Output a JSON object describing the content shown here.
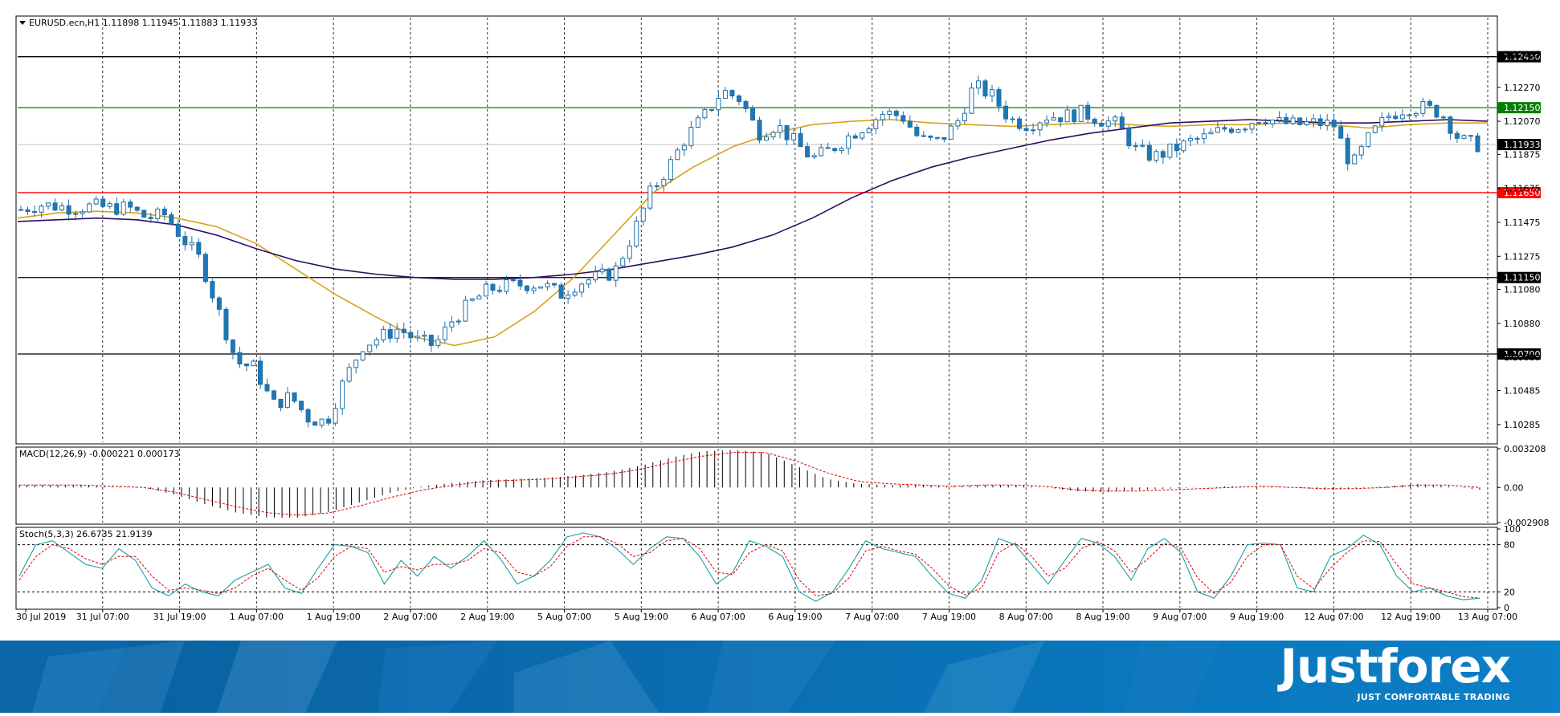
{
  "chart_data": [
    {
      "type": "candlestick",
      "header": {
        "symbol": "EURUSD.ecn,H1",
        "open": "1.11898",
        "high": "1.11945",
        "low": "1.11883",
        "close": "1.11933"
      },
      "ylim": [
        1.1018,
        1.1268
      ],
      "price_ticks": [
        "1.12465",
        "1.12270",
        "1.12070",
        "1.11875",
        "1.11675",
        "1.11475",
        "1.11275",
        "1.11080",
        "1.10880",
        "1.10680",
        "1.10485",
        "1.10285"
      ],
      "horizontal_levels": [
        {
          "value": 1.1245,
          "label": "1.12450",
          "color": "#000000"
        },
        {
          "value": 1.1215,
          "label": "1.12150",
          "color": "#008000"
        },
        {
          "value": 1.1165,
          "label": "1.11650",
          "color": "#ff0000"
        },
        {
          "value": 1.1115,
          "label": "1.11150",
          "color": "#000000"
        },
        {
          "value": 1.107,
          "label": "1.10700",
          "color": "#000000"
        }
      ],
      "current_price": {
        "value": 1.11933,
        "label": "1.11933"
      },
      "x_ticks": [
        "30 Jul 2019",
        "31 Jul 07:00",
        "31 Jul 19:00",
        "1 Aug 07:00",
        "1 Aug 19:00",
        "2 Aug 07:00",
        "2 Aug 19:00",
        "5 Aug 07:00",
        "5 Aug 19:00",
        "6 Aug 07:00",
        "6 Aug 19:00",
        "7 Aug 07:00",
        "7 Aug 19:00",
        "8 Aug 07:00",
        "8 Aug 19:00",
        "9 Aug 07:00",
        "9 Aug 19:00",
        "12 Aug 07:00",
        "12 Aug 19:00",
        "13 Aug 07:00"
      ],
      "close_path": [
        1.1155,
        1.1158,
        1.1157,
        1.1156,
        1.1157,
        1.1156,
        1.1156,
        1.115,
        1.1152,
        1.1138,
        1.1125,
        1.1095,
        1.1065,
        1.1062,
        1.104,
        1.1045,
        1.1032,
        1.103,
        1.1055,
        1.1075,
        1.108,
        1.1085,
        1.1078,
        1.1075,
        1.109,
        1.11,
        1.1108,
        1.111,
        1.1111,
        1.1111,
        1.1105,
        1.1112,
        1.1115,
        1.1118,
        1.114,
        1.1165,
        1.118,
        1.1198,
        1.121,
        1.1225,
        1.122,
        1.12,
        1.1205,
        1.1195,
        1.1185,
        1.119,
        1.1198,
        1.1205,
        1.1212,
        1.121,
        1.1196,
        1.1195,
        1.1205,
        1.1228,
        1.1222,
        1.1208,
        1.1205,
        1.121,
        1.121,
        1.1212,
        1.1208,
        1.1205,
        1.119,
        1.1186,
        1.119,
        1.1195,
        1.1198,
        1.1203,
        1.1205,
        1.121,
        1.1206,
        1.1205,
        1.1206,
        1.1205,
        1.118,
        1.1198,
        1.121,
        1.1215,
        1.1215,
        1.1212,
        1.1196,
        1.1193
      ],
      "series": [
        {
          "name": "",
          "color": "#d9a21b",
          "values": [
            1.115,
            1.1153,
            1.1154,
            1.1153,
            1.115,
            1.1145,
            1.1135,
            1.112,
            1.1105,
            1.1092,
            1.108,
            1.1075,
            1.108,
            1.1095,
            1.1115,
            1.114,
            1.1165,
            1.118,
            1.1192,
            1.12,
            1.1205,
            1.1207,
            1.1208,
            1.1206,
            1.1205,
            1.1204,
            1.1205,
            1.1206,
            1.1205,
            1.1204,
            1.1205,
            1.1205,
            1.1206,
            1.1205,
            1.1203,
            1.1205,
            1.1206,
            1.1206
          ]
        },
        {
          "name": "",
          "color": "#2b0f5e",
          "values": [
            1.1148,
            1.1149,
            1.115,
            1.1149,
            1.1146,
            1.114,
            1.1132,
            1.1125,
            1.112,
            1.1117,
            1.1115,
            1.1114,
            1.1114,
            1.1115,
            1.1117,
            1.112,
            1.1124,
            1.1128,
            1.1133,
            1.114,
            1.115,
            1.1162,
            1.1172,
            1.118,
            1.1186,
            1.1191,
            1.1196,
            1.12,
            1.1203,
            1.1206,
            1.1207,
            1.1208,
            1.1207,
            1.1206,
            1.1206,
            1.1207,
            1.1208,
            1.1207
          ]
        }
      ]
    },
    {
      "type": "bar",
      "title": "MACD(12,26,9) -0.000221 0.000173",
      "ylim": [
        -0.002908,
        0.003208
      ],
      "y_ticks": [
        "0.003208",
        "0.00",
        "-0.002908"
      ],
      "histogram_path": [
        0.0002,
        0.0002,
        0.0002,
        0.0001,
        0.0,
        -0.0006,
        -0.0014,
        -0.0021,
        -0.0025,
        -0.0025,
        -0.002,
        -0.0012,
        -0.0004,
        0.0001,
        0.0004,
        0.0006,
        0.0007,
        0.0008,
        0.001,
        0.0013,
        0.0018,
        0.0025,
        0.003,
        0.0031,
        0.0029,
        0.0018,
        0.0007,
        0.0003,
        0.0002,
        0.0002,
        0.0001,
        0.0002,
        0.0002,
        0.0,
        -0.0003,
        -0.0004,
        -0.0002,
        -0.0001,
        0.0,
        0.0001,
        0.0001,
        0.0,
        -0.0002,
        -0.0001,
        0.0001,
        0.0003,
        0.0001,
        -0.0002
      ],
      "signal_path": [
        0.0002,
        0.0002,
        0.0002,
        0.0001,
        0.0,
        -0.0004,
        -0.001,
        -0.0016,
        -0.0021,
        -0.0023,
        -0.0021,
        -0.0015,
        -0.0008,
        -0.0002,
        0.0002,
        0.0005,
        0.0006,
        0.0007,
        0.0009,
        0.0011,
        0.0015,
        0.0021,
        0.0026,
        0.0029,
        0.0029,
        0.0022,
        0.0012,
        0.0005,
        0.0003,
        0.0002,
        0.0001,
        0.0002,
        0.0002,
        0.0001,
        -0.0002,
        -0.0003,
        -0.0003,
        -0.0002,
        -0.0001,
        0.0,
        0.0001,
        0.0,
        -0.0001,
        -0.0001,
        0.0,
        0.0002,
        0.0002,
        0.0
      ]
    },
    {
      "type": "line",
      "title": "Stoch(5,3,3) 26.6735 21.9139",
      "ylim": [
        0,
        100
      ],
      "y_ticks": [
        "100",
        "80",
        "20",
        "0"
      ],
      "levels": [
        80,
        20
      ],
      "main_path": [
        40,
        80,
        85,
        70,
        55,
        50,
        75,
        60,
        25,
        15,
        30,
        20,
        15,
        35,
        45,
        55,
        25,
        18,
        50,
        80,
        78,
        70,
        30,
        60,
        40,
        65,
        50,
        65,
        85,
        62,
        30,
        40,
        60,
        90,
        95,
        90,
        75,
        55,
        75,
        90,
        88,
        65,
        30,
        45,
        85,
        78,
        65,
        20,
        8,
        20,
        50,
        85,
        75,
        70,
        65,
        40,
        18,
        12,
        35,
        88,
        80,
        55,
        30,
        60,
        88,
        82,
        65,
        35,
        75,
        88,
        70,
        20,
        12,
        40,
        80,
        82,
        80,
        25,
        20,
        65,
        75,
        92,
        80,
        40,
        20,
        25,
        15,
        10,
        12
      ],
      "signal_path": [
        35,
        65,
        80,
        75,
        62,
        55,
        65,
        65,
        40,
        22,
        25,
        22,
        18,
        25,
        40,
        50,
        35,
        22,
        38,
        65,
        78,
        75,
        45,
        52,
        48,
        55,
        55,
        60,
        75,
        70,
        45,
        40,
        52,
        78,
        90,
        90,
        82,
        65,
        70,
        85,
        88,
        75,
        45,
        42,
        70,
        80,
        72,
        35,
        15,
        18,
        38,
        72,
        78,
        72,
        68,
        50,
        28,
        16,
        25,
        70,
        82,
        65,
        40,
        50,
        75,
        84,
        72,
        45,
        62,
        82,
        76,
        38,
        18,
        32,
        65,
        80,
        80,
        40,
        24,
        50,
        70,
        85,
        84,
        55,
        30,
        25,
        20,
        14,
        12
      ]
    }
  ],
  "brand": {
    "logo_text": "Justforex",
    "tagline": "JUST COMFORTABLE TRADING"
  }
}
